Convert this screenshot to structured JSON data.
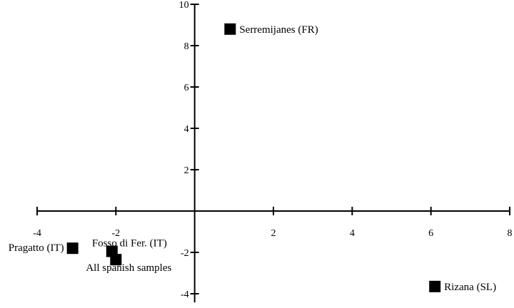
{
  "chart_data": {
    "type": "scatter",
    "title": "",
    "xlabel": "",
    "ylabel": "",
    "xlim": [
      -4,
      8
    ],
    "ylim": [
      -4,
      10
    ],
    "x_ticks": [
      -4,
      -2,
      2,
      4,
      6,
      8
    ],
    "y_ticks": [
      -4,
      -2,
      2,
      4,
      6,
      8,
      10
    ],
    "grid": false,
    "legend": "none",
    "marker_color": "#000000",
    "points": [
      {
        "label": "Serremijanes (FR)",
        "x": 0.9,
        "y": 8.8
      },
      {
        "label": "Pragatto (IT)",
        "x": -3.1,
        "y": -1.8
      },
      {
        "label": "Fosso di Fer.  (IT)",
        "x": -2.1,
        "y": -1.95
      },
      {
        "label": "All spanish samples",
        "x": -2.0,
        "y": -2.35
      },
      {
        "label": "Rizana (SL)",
        "x": 6.1,
        "y": -3.65
      }
    ]
  }
}
